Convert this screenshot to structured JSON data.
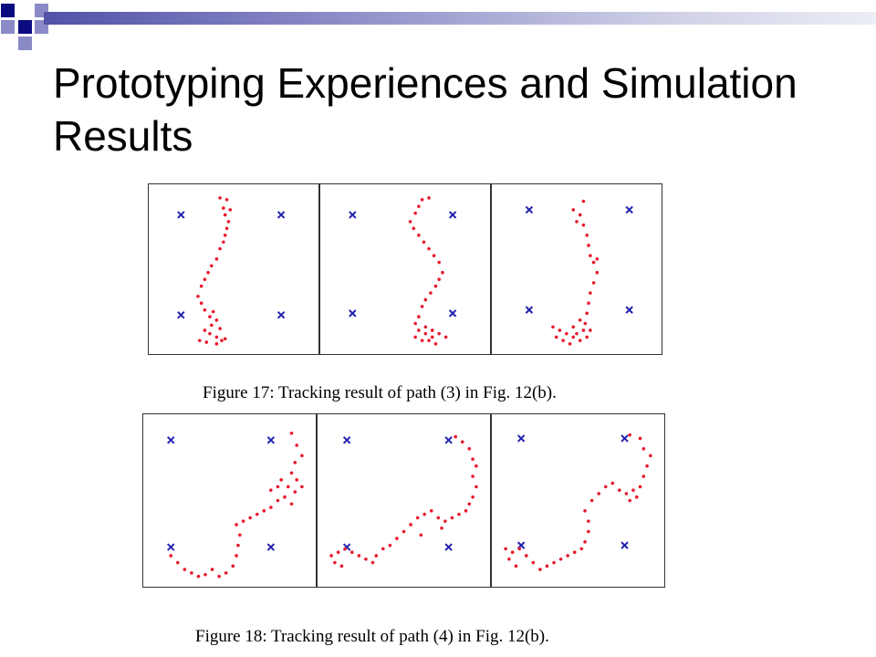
{
  "slide": {
    "title": "Prototyping Experiences and Simulation Results"
  },
  "colors": {
    "track_point": "#e8192c",
    "anchor": "#2222b0",
    "deco_dark": "#0b0b80",
    "deco_light": "#8a8ac6",
    "panel_border": "#333333"
  },
  "chart_data": [
    {
      "type": "scatter",
      "caption": "Figure 17: Tracking result of path (3) in Fig. 12(b).",
      "xlim": [
        0,
        1
      ],
      "ylim": [
        0,
        1
      ],
      "grid": false,
      "panels": [
        {
          "anchors": [
            [
              0.19,
              0.82
            ],
            [
              0.78,
              0.82
            ],
            [
              0.19,
              0.23
            ],
            [
              0.78,
              0.23
            ]
          ],
          "points": [
            [
              0.42,
              0.92
            ],
            [
              0.46,
              0.91
            ],
            [
              0.44,
              0.86
            ],
            [
              0.48,
              0.85
            ],
            [
              0.45,
              0.82
            ],
            [
              0.47,
              0.78
            ],
            [
              0.46,
              0.74
            ],
            [
              0.45,
              0.7
            ],
            [
              0.44,
              0.66
            ],
            [
              0.42,
              0.62
            ],
            [
              0.4,
              0.56
            ],
            [
              0.37,
              0.52
            ],
            [
              0.35,
              0.48
            ],
            [
              0.33,
              0.44
            ],
            [
              0.31,
              0.4
            ],
            [
              0.29,
              0.34
            ],
            [
              0.31,
              0.3
            ],
            [
              0.33,
              0.26
            ],
            [
              0.36,
              0.22
            ],
            [
              0.4,
              0.2
            ],
            [
              0.37,
              0.17
            ],
            [
              0.33,
              0.14
            ],
            [
              0.36,
              0.12
            ],
            [
              0.4,
              0.1
            ],
            [
              0.43,
              0.08
            ],
            [
              0.34,
              0.07
            ],
            [
              0.3,
              0.08
            ],
            [
              0.4,
              0.06
            ],
            [
              0.45,
              0.09
            ],
            [
              0.38,
              0.25
            ],
            [
              0.42,
              0.15
            ]
          ]
        },
        {
          "anchors": [
            [
              0.19,
              0.82
            ],
            [
              0.78,
              0.82
            ],
            [
              0.19,
              0.24
            ],
            [
              0.78,
              0.24
            ]
          ],
          "points": [
            [
              0.6,
              0.91
            ],
            [
              0.64,
              0.92
            ],
            [
              0.58,
              0.87
            ],
            [
              0.56,
              0.83
            ],
            [
              0.53,
              0.78
            ],
            [
              0.55,
              0.74
            ],
            [
              0.58,
              0.7
            ],
            [
              0.61,
              0.66
            ],
            [
              0.64,
              0.62
            ],
            [
              0.67,
              0.58
            ],
            [
              0.7,
              0.54
            ],
            [
              0.72,
              0.48
            ],
            [
              0.7,
              0.44
            ],
            [
              0.68,
              0.4
            ],
            [
              0.65,
              0.36
            ],
            [
              0.62,
              0.32
            ],
            [
              0.6,
              0.28
            ],
            [
              0.58,
              0.22
            ],
            [
              0.56,
              0.18
            ],
            [
              0.58,
              0.14
            ],
            [
              0.62,
              0.12
            ],
            [
              0.66,
              0.1
            ],
            [
              0.7,
              0.12
            ],
            [
              0.74,
              0.1
            ],
            [
              0.6,
              0.08
            ],
            [
              0.56,
              0.1
            ],
            [
              0.64,
              0.08
            ],
            [
              0.68,
              0.06
            ],
            [
              0.62,
              0.16
            ],
            [
              0.66,
              0.14
            ]
          ]
        },
        {
          "anchors": [
            [
              0.22,
              0.85
            ],
            [
              0.81,
              0.85
            ],
            [
              0.22,
              0.26
            ],
            [
              0.81,
              0.26
            ]
          ],
          "points": [
            [
              0.48,
              0.85
            ],
            [
              0.52,
              0.82
            ],
            [
              0.5,
              0.78
            ],
            [
              0.54,
              0.76
            ],
            [
              0.56,
              0.7
            ],
            [
              0.57,
              0.64
            ],
            [
              0.58,
              0.58
            ],
            [
              0.6,
              0.54
            ],
            [
              0.62,
              0.48
            ],
            [
              0.6,
              0.42
            ],
            [
              0.58,
              0.36
            ],
            [
              0.57,
              0.3
            ],
            [
              0.56,
              0.24
            ],
            [
              0.55,
              0.18
            ],
            [
              0.58,
              0.14
            ],
            [
              0.56,
              0.1
            ],
            [
              0.52,
              0.08
            ],
            [
              0.48,
              0.1
            ],
            [
              0.44,
              0.12
            ],
            [
              0.4,
              0.14
            ],
            [
              0.36,
              0.16
            ],
            [
              0.38,
              0.1
            ],
            [
              0.42,
              0.08
            ],
            [
              0.46,
              0.06
            ],
            [
              0.5,
              0.12
            ],
            [
              0.54,
              0.14
            ],
            [
              0.52,
              0.2
            ],
            [
              0.48,
              0.16
            ],
            [
              0.62,
              0.56
            ],
            [
              0.54,
              0.9
            ]
          ]
        }
      ]
    },
    {
      "type": "scatter",
      "caption": "Figure 18: Tracking result of path (4) in Fig. 12(b).",
      "xlim": [
        0,
        1
      ],
      "ylim": [
        0,
        1
      ],
      "grid": false,
      "panels": [
        {
          "anchors": [
            [
              0.16,
              0.85
            ],
            [
              0.74,
              0.85
            ],
            [
              0.16,
              0.23
            ],
            [
              0.74,
              0.23
            ]
          ],
          "points": [
            [
              0.86,
              0.89
            ],
            [
              0.89,
              0.82
            ],
            [
              0.92,
              0.76
            ],
            [
              0.88,
              0.72
            ],
            [
              0.86,
              0.66
            ],
            [
              0.89,
              0.62
            ],
            [
              0.92,
              0.58
            ],
            [
              0.88,
              0.55
            ],
            [
              0.84,
              0.58
            ],
            [
              0.8,
              0.62
            ],
            [
              0.78,
              0.58
            ],
            [
              0.74,
              0.56
            ],
            [
              0.78,
              0.5
            ],
            [
              0.74,
              0.46
            ],
            [
              0.7,
              0.44
            ],
            [
              0.66,
              0.42
            ],
            [
              0.62,
              0.4
            ],
            [
              0.58,
              0.38
            ],
            [
              0.54,
              0.36
            ],
            [
              0.56,
              0.3
            ],
            [
              0.55,
              0.24
            ],
            [
              0.54,
              0.18
            ],
            [
              0.52,
              0.12
            ],
            [
              0.48,
              0.08
            ],
            [
              0.44,
              0.06
            ],
            [
              0.4,
              0.1
            ],
            [
              0.36,
              0.07
            ],
            [
              0.32,
              0.06
            ],
            [
              0.28,
              0.08
            ],
            [
              0.24,
              0.1
            ],
            [
              0.2,
              0.14
            ],
            [
              0.16,
              0.18
            ],
            [
              0.82,
              0.52
            ],
            [
              0.86,
              0.48
            ]
          ]
        },
        {
          "anchors": [
            [
              0.17,
              0.85
            ],
            [
              0.76,
              0.85
            ],
            [
              0.17,
              0.23
            ],
            [
              0.76,
              0.23
            ]
          ],
          "points": [
            [
              0.8,
              0.87
            ],
            [
              0.84,
              0.84
            ],
            [
              0.88,
              0.8
            ],
            [
              0.9,
              0.74
            ],
            [
              0.92,
              0.7
            ],
            [
              0.9,
              0.64
            ],
            [
              0.92,
              0.58
            ],
            [
              0.9,
              0.52
            ],
            [
              0.88,
              0.48
            ],
            [
              0.86,
              0.44
            ],
            [
              0.82,
              0.42
            ],
            [
              0.78,
              0.4
            ],
            [
              0.74,
              0.38
            ],
            [
              0.7,
              0.4
            ],
            [
              0.66,
              0.44
            ],
            [
              0.62,
              0.42
            ],
            [
              0.58,
              0.4
            ],
            [
              0.54,
              0.36
            ],
            [
              0.5,
              0.32
            ],
            [
              0.46,
              0.28
            ],
            [
              0.42,
              0.24
            ],
            [
              0.38,
              0.22
            ],
            [
              0.34,
              0.18
            ],
            [
              0.32,
              0.14
            ],
            [
              0.28,
              0.16
            ],
            [
              0.24,
              0.18
            ],
            [
              0.2,
              0.2
            ],
            [
              0.16,
              0.22
            ],
            [
              0.12,
              0.2
            ],
            [
              0.08,
              0.18
            ],
            [
              0.1,
              0.14
            ],
            [
              0.14,
              0.12
            ],
            [
              0.6,
              0.3
            ],
            [
              0.72,
              0.34
            ]
          ]
        },
        {
          "anchors": [
            [
              0.17,
              0.86
            ],
            [
              0.77,
              0.86
            ],
            [
              0.17,
              0.24
            ],
            [
              0.77,
              0.24
            ]
          ],
          "points": [
            [
              0.8,
              0.88
            ],
            [
              0.86,
              0.86
            ],
            [
              0.88,
              0.8
            ],
            [
              0.92,
              0.76
            ],
            [
              0.9,
              0.7
            ],
            [
              0.88,
              0.64
            ],
            [
              0.86,
              0.58
            ],
            [
              0.82,
              0.56
            ],
            [
              0.78,
              0.54
            ],
            [
              0.74,
              0.56
            ],
            [
              0.7,
              0.6
            ],
            [
              0.66,
              0.58
            ],
            [
              0.62,
              0.54
            ],
            [
              0.58,
              0.5
            ],
            [
              0.54,
              0.44
            ],
            [
              0.56,
              0.38
            ],
            [
              0.56,
              0.32
            ],
            [
              0.54,
              0.26
            ],
            [
              0.52,
              0.22
            ],
            [
              0.48,
              0.2
            ],
            [
              0.44,
              0.18
            ],
            [
              0.4,
              0.16
            ],
            [
              0.36,
              0.14
            ],
            [
              0.32,
              0.12
            ],
            [
              0.28,
              0.1
            ],
            [
              0.24,
              0.14
            ],
            [
              0.2,
              0.18
            ],
            [
              0.16,
              0.22
            ],
            [
              0.12,
              0.2
            ],
            [
              0.08,
              0.22
            ],
            [
              0.1,
              0.16
            ],
            [
              0.14,
              0.12
            ],
            [
              0.8,
              0.5
            ],
            [
              0.84,
              0.52
            ]
          ]
        }
      ]
    }
  ]
}
